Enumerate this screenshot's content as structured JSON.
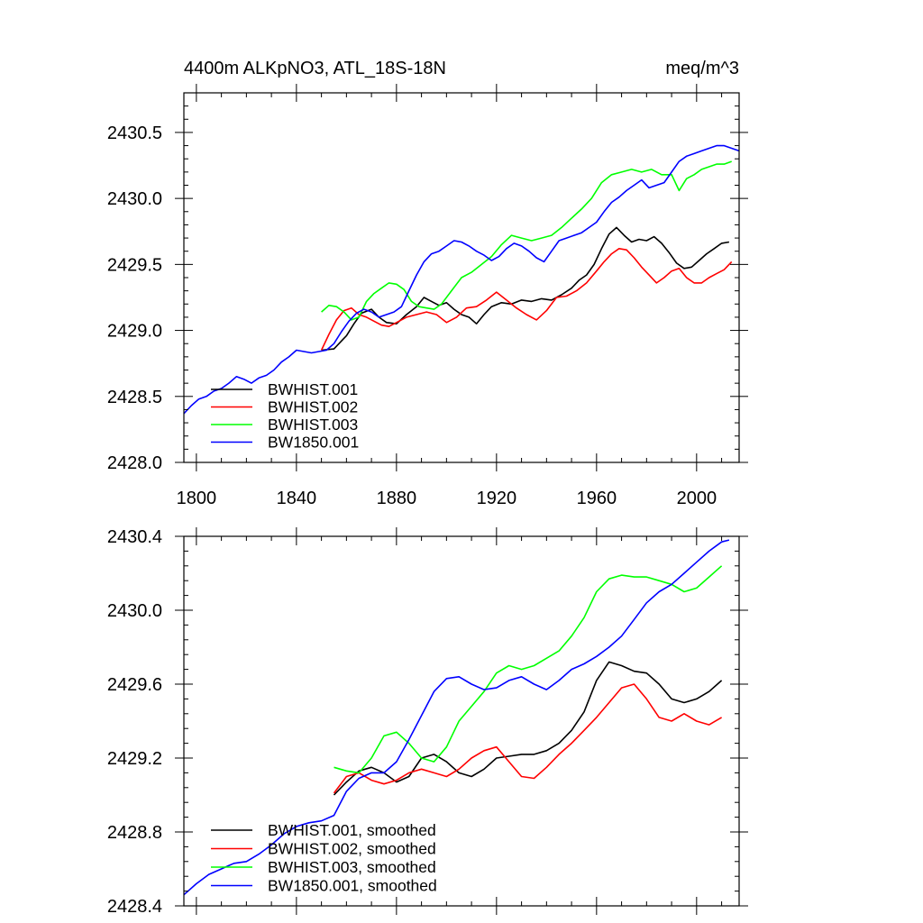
{
  "chart_data": [
    {
      "type": "line",
      "title_left": "4400m ALKpNO3, ATL_18S-18N",
      "title_right": "meq/m^3",
      "xlim": [
        1795,
        2017
      ],
      "ylim": [
        2428.0,
        2430.8
      ],
      "x_ticks": [
        1800,
        1840,
        1880,
        1920,
        1960,
        2000
      ],
      "x_tick_labels": [
        "1800",
        "1840",
        "1880",
        "1920",
        "1960",
        "2000"
      ],
      "y_ticks": [
        2428.0,
        2428.5,
        2429.0,
        2429.5,
        2430.0,
        2430.5
      ],
      "y_tick_labels": [
        "2428.0",
        "2428.5",
        "2429.0",
        "2429.5",
        "2430.0",
        "2430.5"
      ],
      "grid": false,
      "legend_position": "bottom-left",
      "series": [
        {
          "name": "BWHIST.001",
          "color": "#000000",
          "x": [
            1850,
            1855,
            1860,
            1863,
            1866,
            1870,
            1873,
            1876,
            1880,
            1884,
            1888,
            1891,
            1894,
            1897,
            1900,
            1903,
            1906,
            1909,
            1912,
            1915,
            1918,
            1922,
            1926,
            1930,
            1934,
            1938,
            1942,
            1946,
            1950,
            1953,
            1956,
            1959,
            1962,
            1965,
            1968,
            1971,
            1974,
            1977,
            1980,
            1983,
            1986,
            1989,
            1992,
            1995,
            1998,
            2001,
            2004,
            2007,
            2010,
            2013
          ],
          "y": [
            2428.85,
            2428.86,
            2428.96,
            2429.05,
            2429.13,
            2429.16,
            2429.1,
            2429.06,
            2429.05,
            2429.12,
            2429.18,
            2429.25,
            2429.22,
            2429.19,
            2429.21,
            2429.16,
            2429.12,
            2429.1,
            2429.05,
            2429.12,
            2429.18,
            2429.21,
            2429.2,
            2429.23,
            2429.22,
            2429.24,
            2429.23,
            2429.27,
            2429.32,
            2429.38,
            2429.42,
            2429.5,
            2429.62,
            2429.73,
            2429.78,
            2429.72,
            2429.67,
            2429.69,
            2429.68,
            2429.71,
            2429.66,
            2429.59,
            2429.51,
            2429.47,
            2429.48,
            2429.53,
            2429.58,
            2429.62,
            2429.66,
            2429.67
          ]
        },
        {
          "name": "BWHIST.002",
          "color": "#ff0000",
          "x": [
            1850,
            1853,
            1856,
            1859,
            1862,
            1865,
            1868,
            1871,
            1874,
            1877,
            1880,
            1884,
            1888,
            1892,
            1896,
            1900,
            1904,
            1908,
            1912,
            1916,
            1920,
            1924,
            1928,
            1932,
            1936,
            1940,
            1944,
            1948,
            1952,
            1956,
            1960,
            1963,
            1966,
            1969,
            1972,
            1975,
            1978,
            1981,
            1984,
            1987,
            1990,
            1993,
            1996,
            1999,
            2002,
            2005,
            2008,
            2011,
            2014
          ],
          "y": [
            2428.85,
            2428.97,
            2429.08,
            2429.15,
            2429.17,
            2429.12,
            2429.1,
            2429.07,
            2429.04,
            2429.03,
            2429.06,
            2429.1,
            2429.12,
            2429.14,
            2429.12,
            2429.06,
            2429.1,
            2429.17,
            2429.18,
            2429.23,
            2429.29,
            2429.23,
            2429.17,
            2429.12,
            2429.08,
            2429.15,
            2429.25,
            2429.26,
            2429.3,
            2429.36,
            2429.45,
            2429.52,
            2429.58,
            2429.62,
            2429.61,
            2429.55,
            2429.48,
            2429.42,
            2429.36,
            2429.4,
            2429.45,
            2429.47,
            2429.4,
            2429.36,
            2429.36,
            2429.4,
            2429.43,
            2429.46,
            2429.52
          ]
        },
        {
          "name": "BWHIST.003",
          "color": "#00ff00",
          "x": [
            1850,
            1853,
            1856,
            1859,
            1862,
            1865,
            1868,
            1871,
            1874,
            1877,
            1880,
            1883,
            1886,
            1889,
            1892,
            1895,
            1898,
            1902,
            1906,
            1910,
            1914,
            1918,
            1922,
            1926,
            1930,
            1934,
            1938,
            1942,
            1946,
            1950,
            1954,
            1958,
            1962,
            1966,
            1970,
            1974,
            1978,
            1982,
            1986,
            1990,
            1993,
            1996,
            1999,
            2002,
            2005,
            2008,
            2011,
            2014
          ],
          "y": [
            2429.14,
            2429.19,
            2429.18,
            2429.14,
            2429.08,
            2429.1,
            2429.22,
            2429.28,
            2429.32,
            2429.36,
            2429.35,
            2429.31,
            2429.22,
            2429.18,
            2429.17,
            2429.16,
            2429.2,
            2429.3,
            2429.4,
            2429.44,
            2429.5,
            2429.56,
            2429.65,
            2429.72,
            2429.7,
            2429.68,
            2429.7,
            2429.72,
            2429.78,
            2429.85,
            2429.92,
            2430.0,
            2430.12,
            2430.18,
            2430.2,
            2430.22,
            2430.2,
            2430.22,
            2430.18,
            2430.18,
            2430.06,
            2430.15,
            2430.18,
            2430.22,
            2430.24,
            2430.26,
            2430.26,
            2430.28
          ]
        },
        {
          "name": "BW1850.001",
          "color": "#0000ff",
          "x": [
            1795,
            1798,
            1801,
            1804,
            1807,
            1810,
            1813,
            1816,
            1819,
            1822,
            1825,
            1828,
            1831,
            1834,
            1837,
            1840,
            1843,
            1846,
            1849,
            1852,
            1855,
            1858,
            1861,
            1864,
            1867,
            1870,
            1873,
            1876,
            1879,
            1882,
            1885,
            1888,
            1891,
            1894,
            1897,
            1900,
            1903,
            1906,
            1909,
            1912,
            1915,
            1918,
            1921,
            1924,
            1927,
            1930,
            1933,
            1936,
            1939,
            1942,
            1945,
            1948,
            1951,
            1954,
            1957,
            1960,
            1963,
            1966,
            1969,
            1972,
            1975,
            1978,
            1981,
            1984,
            1987,
            1990,
            1993,
            1996,
            1999,
            2002,
            2005,
            2008,
            2011,
            2014,
            2017
          ],
          "y": [
            2428.37,
            2428.43,
            2428.48,
            2428.5,
            2428.54,
            2428.56,
            2428.6,
            2428.65,
            2428.63,
            2428.6,
            2428.64,
            2428.66,
            2428.7,
            2428.76,
            2428.8,
            2428.85,
            2428.84,
            2428.83,
            2428.84,
            2428.85,
            2428.9,
            2428.99,
            2429.07,
            2429.13,
            2429.16,
            2429.14,
            2429.1,
            2429.12,
            2429.14,
            2429.18,
            2429.3,
            2429.42,
            2429.52,
            2429.58,
            2429.6,
            2429.64,
            2429.68,
            2429.67,
            2429.64,
            2429.6,
            2429.57,
            2429.53,
            2429.56,
            2429.62,
            2429.66,
            2429.64,
            2429.6,
            2429.55,
            2429.52,
            2429.6,
            2429.68,
            2429.7,
            2429.72,
            2429.74,
            2429.78,
            2429.82,
            2429.9,
            2429.97,
            2430.01,
            2430.06,
            2430.1,
            2430.14,
            2430.08,
            2430.1,
            2430.12,
            2430.2,
            2430.28,
            2430.32,
            2430.34,
            2430.36,
            2430.38,
            2430.4,
            2430.4,
            2430.38,
            2430.36
          ]
        }
      ]
    },
    {
      "type": "line",
      "xlim": [
        1795,
        2017
      ],
      "ylim": [
        2428.4,
        2430.4
      ],
      "x_ticks": [
        1800,
        1840,
        1880,
        1920,
        1960,
        2000
      ],
      "y_ticks": [
        2428.4,
        2428.8,
        2429.2,
        2429.6,
        2430.0,
        2430.4
      ],
      "y_tick_labels": [
        "2428.4",
        "2428.8",
        "2429.2",
        "2429.6",
        "2430.0",
        "2430.4"
      ],
      "grid": false,
      "legend_position": "bottom-left",
      "series": [
        {
          "name": "BWHIST.001, smoothed",
          "color": "#000000",
          "x": [
            1855,
            1860,
            1865,
            1870,
            1875,
            1880,
            1885,
            1890,
            1895,
            1900,
            1905,
            1910,
            1915,
            1920,
            1925,
            1930,
            1935,
            1940,
            1945,
            1950,
            1955,
            1960,
            1965,
            1970,
            1975,
            1980,
            1985,
            1990,
            1995,
            2000,
            2005,
            2010
          ],
          "y": [
            2429.0,
            2429.07,
            2429.13,
            2429.15,
            2429.12,
            2429.07,
            2429.1,
            2429.2,
            2429.22,
            2429.18,
            2429.12,
            2429.1,
            2429.14,
            2429.2,
            2429.21,
            2429.22,
            2429.22,
            2429.24,
            2429.28,
            2429.35,
            2429.45,
            2429.62,
            2429.72,
            2429.7,
            2429.67,
            2429.66,
            2429.6,
            2429.52,
            2429.5,
            2429.52,
            2429.56,
            2429.62
          ]
        },
        {
          "name": "BWHIST.002, smoothed",
          "color": "#ff0000",
          "x": [
            1855,
            1860,
            1865,
            1870,
            1875,
            1880,
            1885,
            1890,
            1895,
            1900,
            1905,
            1910,
            1915,
            1920,
            1925,
            1930,
            1935,
            1940,
            1945,
            1950,
            1955,
            1960,
            1965,
            1970,
            1975,
            1980,
            1985,
            1990,
            1995,
            2000,
            2005,
            2010
          ],
          "y": [
            2429.01,
            2429.1,
            2429.12,
            2429.08,
            2429.06,
            2429.08,
            2429.12,
            2429.14,
            2429.12,
            2429.1,
            2429.14,
            2429.2,
            2429.24,
            2429.26,
            2429.18,
            2429.1,
            2429.09,
            2429.15,
            2429.22,
            2429.28,
            2429.35,
            2429.42,
            2429.5,
            2429.58,
            2429.6,
            2429.52,
            2429.42,
            2429.4,
            2429.44,
            2429.4,
            2429.38,
            2429.42
          ]
        },
        {
          "name": "BWHIST.003, smoothed",
          "color": "#00ff00",
          "x": [
            1855,
            1860,
            1865,
            1870,
            1875,
            1880,
            1885,
            1890,
            1895,
            1900,
            1905,
            1910,
            1915,
            1920,
            1925,
            1930,
            1935,
            1940,
            1945,
            1950,
            1955,
            1960,
            1965,
            1970,
            1975,
            1980,
            1985,
            1990,
            1995,
            2000,
            2005,
            2010
          ],
          "y": [
            2429.15,
            2429.13,
            2429.12,
            2429.2,
            2429.32,
            2429.34,
            2429.28,
            2429.2,
            2429.18,
            2429.26,
            2429.4,
            2429.48,
            2429.56,
            2429.66,
            2429.7,
            2429.68,
            2429.7,
            2429.74,
            2429.78,
            2429.86,
            2429.96,
            2430.1,
            2430.17,
            2430.19,
            2430.18,
            2430.18,
            2430.16,
            2430.14,
            2430.1,
            2430.12,
            2430.18,
            2430.24
          ]
        },
        {
          "name": "BW1850.001, smoothed",
          "color": "#0000ff",
          "x": [
            1795,
            1800,
            1805,
            1810,
            1815,
            1820,
            1825,
            1830,
            1835,
            1840,
            1845,
            1850,
            1855,
            1860,
            1865,
            1870,
            1875,
            1880,
            1885,
            1890,
            1895,
            1900,
            1905,
            1910,
            1915,
            1920,
            1925,
            1930,
            1935,
            1940,
            1945,
            1950,
            1955,
            1960,
            1965,
            1970,
            1975,
            1980,
            1985,
            1990,
            1995,
            2000,
            2005,
            2010,
            2013
          ],
          "y": [
            2428.46,
            2428.52,
            2428.57,
            2428.6,
            2428.63,
            2428.64,
            2428.68,
            2428.73,
            2428.79,
            2428.83,
            2428.85,
            2428.86,
            2428.89,
            2429.02,
            2429.09,
            2429.12,
            2429.12,
            2429.18,
            2429.3,
            2429.43,
            2429.56,
            2429.63,
            2429.64,
            2429.6,
            2429.57,
            2429.58,
            2429.62,
            2429.64,
            2429.6,
            2429.57,
            2429.62,
            2429.68,
            2429.71,
            2429.75,
            2429.8,
            2429.86,
            2429.95,
            2430.04,
            2430.1,
            2430.14,
            2430.2,
            2430.26,
            2430.32,
            2430.37,
            2430.38
          ]
        }
      ]
    }
  ]
}
